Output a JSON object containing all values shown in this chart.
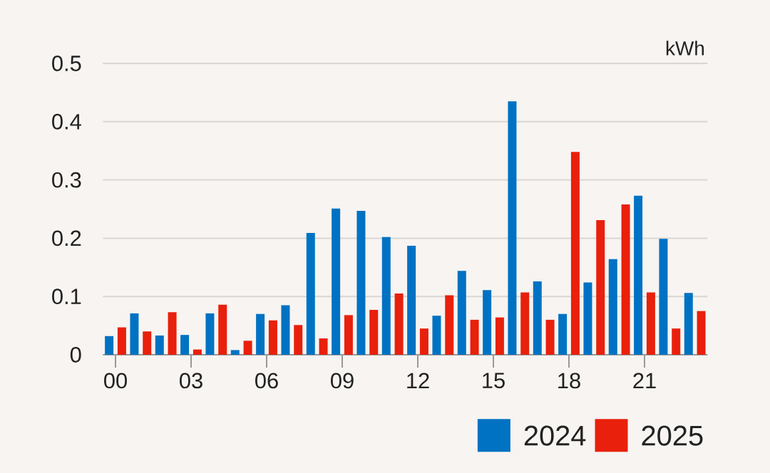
{
  "chart_data": {
    "type": "bar",
    "ylabel": "kWh",
    "categories": [
      "00",
      null,
      null,
      "03",
      null,
      null,
      "06",
      null,
      null,
      "09",
      null,
      null,
      "12",
      null,
      null,
      "15",
      null,
      null,
      "18",
      null,
      null,
      "21",
      null,
      null
    ],
    "series": [
      {
        "name": "2024",
        "color": "#0072c3",
        "values": [
          0.032,
          0.071,
          0.033,
          0.034,
          0.071,
          0.008,
          0.07,
          0.085,
          0.209,
          0.251,
          0.247,
          0.202,
          0.187,
          0.067,
          0.144,
          0.111,
          0.435,
          0.126,
          0.07,
          0.124,
          0.164,
          0.273,
          0.199,
          0.106
        ]
      },
      {
        "name": "2025",
        "color": "#e8200c",
        "values": [
          0.047,
          0.04,
          0.073,
          0.009,
          0.086,
          0.024,
          0.059,
          0.051,
          0.028,
          0.068,
          0.077,
          0.105,
          0.045,
          0.102,
          0.06,
          0.064,
          0.107,
          0.06,
          0.348,
          0.231,
          0.258,
          0.107,
          0.045,
          0.075
        ]
      }
    ],
    "ylim": [
      0,
      0.5
    ],
    "yticks": [
      0,
      0.1,
      0.2,
      0.3,
      0.4,
      0.5
    ],
    "grid": "y",
    "legend": "bottom right"
  }
}
